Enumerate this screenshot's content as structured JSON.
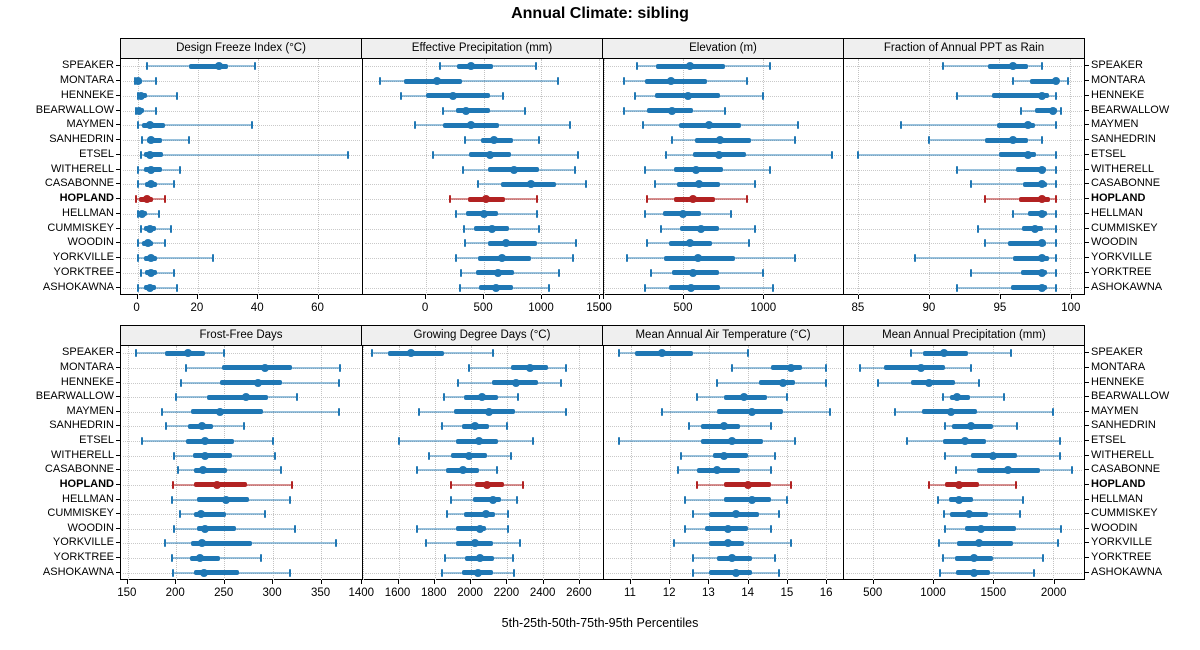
{
  "title": "Annual Climate: sibling",
  "caption": "5th-25th-50th-75th-95th Percentiles",
  "highlight_station": "HOPLAND",
  "percentile_labels": [
    "5th",
    "25th",
    "50th",
    "75th",
    "95th"
  ],
  "stations": [
    "SPEAKER",
    "MONTARA",
    "HENNEKE",
    "BEARWALLOW",
    "MAYMEN",
    "SANHEDRIN",
    "ETSEL",
    "WITHERELL",
    "CASABONNE",
    "HOPLAND",
    "HELLMAN",
    "CUMMISKEY",
    "WOODIN",
    "YORKVILLE",
    "YORKTREE",
    "ASHOKAWNA"
  ],
  "colors": {
    "normal": "#1f77b4",
    "normal_whisker": "rgba(31,119,180,0.45)",
    "highlight": "#b22222",
    "highlight_whisker": "rgba(178,34,34,0.5)",
    "strip_bg": "#efefef",
    "grid": "#c3c3c3",
    "border": "#000000"
  },
  "chart_data": [
    {
      "type": "scatter",
      "subtype": "percentile-interval-dotplot",
      "title": "Design Freeze Index (°C)",
      "row": 0,
      "xlim": [
        -5.5,
        74.5
      ],
      "ticks": [
        0,
        20,
        40,
        60
      ],
      "values": [
        [
          3,
          17,
          27,
          30,
          39
        ],
        [
          -1,
          -0.5,
          0,
          1.5,
          6
        ],
        [
          0,
          0.5,
          1,
          3,
          13
        ],
        [
          -0.5,
          0,
          0.5,
          2,
          6
        ],
        [
          0,
          1.5,
          4,
          9,
          38
        ],
        [
          1.5,
          3,
          4.5,
          8,
          17
        ],
        [
          1,
          2,
          4,
          8.5,
          70
        ],
        [
          0,
          2,
          4.5,
          8,
          14
        ],
        [
          0,
          2.5,
          4.5,
          6.5,
          12
        ],
        [
          -0.5,
          0.5,
          3,
          5,
          9
        ],
        [
          0,
          0.5,
          1.5,
          3,
          7
        ],
        [
          1,
          2,
          4,
          6,
          11
        ],
        [
          0,
          1.5,
          3.5,
          5,
          9
        ],
        [
          0,
          2,
          4.5,
          6.5,
          25
        ],
        [
          1,
          2.5,
          4.5,
          6.5,
          12
        ],
        [
          0,
          2,
          4,
          6,
          13
        ]
      ]
    },
    {
      "type": "scatter",
      "subtype": "percentile-interval-dotplot",
      "title": "Effective Precipitation (mm)",
      "row": 0,
      "xlim": [
        -550,
        1530
      ],
      "ticks": [
        0,
        500,
        1000,
        1500
      ],
      "values": [
        [
          120,
          265,
          390,
          580,
          955
        ],
        [
          -400,
          -190,
          95,
          315,
          1145
        ],
        [
          -220,
          0,
          230,
          550,
          670
        ],
        [
          145,
          260,
          350,
          550,
          860
        ],
        [
          -100,
          145,
          390,
          630,
          1245
        ],
        [
          340,
          480,
          590,
          750,
          980
        ],
        [
          60,
          375,
          550,
          740,
          1320
        ],
        [
          320,
          540,
          760,
          980,
          1295
        ],
        [
          450,
          650,
          910,
          1130,
          1390
        ],
        [
          210,
          360,
          520,
          680,
          960
        ],
        [
          255,
          350,
          500,
          625,
          960
        ],
        [
          330,
          415,
          575,
          715,
          980
        ],
        [
          340,
          535,
          690,
          960,
          1300
        ],
        [
          260,
          450,
          655,
          910,
          1270
        ],
        [
          300,
          435,
          620,
          760,
          1155
        ],
        [
          290,
          460,
          610,
          750,
          1070
        ]
      ]
    },
    {
      "type": "scatter",
      "subtype": "percentile-interval-dotplot",
      "title": "Elevation (m)",
      "row": 0,
      "xlim": [
        0,
        1500
      ],
      "ticks": [
        0,
        500,
        1000
      ],
      "values": [
        [
          210,
          330,
          540,
          760,
          1040
        ],
        [
          130,
          260,
          420,
          650,
          900
        ],
        [
          200,
          320,
          530,
          730,
          1000
        ],
        [
          130,
          270,
          430,
          560,
          760
        ],
        [
          250,
          470,
          660,
          860,
          1220
        ],
        [
          430,
          570,
          730,
          920,
          1200
        ],
        [
          390,
          560,
          720,
          890,
          1430
        ],
        [
          260,
          440,
          580,
          750,
          1040
        ],
        [
          320,
          460,
          600,
          730,
          950
        ],
        [
          270,
          440,
          560,
          700,
          900
        ],
        [
          260,
          370,
          500,
          610,
          800
        ],
        [
          360,
          480,
          610,
          720,
          950
        ],
        [
          270,
          410,
          540,
          680,
          910
        ],
        [
          150,
          380,
          590,
          820,
          1200
        ],
        [
          300,
          430,
          560,
          720,
          1000
        ],
        [
          260,
          410,
          550,
          730,
          1060
        ]
      ]
    },
    {
      "type": "scatter",
      "subtype": "percentile-interval-dotplot",
      "title": "Fraction of Annual PPT as Rain",
      "row": 0,
      "xlim": [
        84,
        101
      ],
      "ticks": [
        85,
        90,
        95,
        100
      ],
      "values": [
        [
          91,
          94.2,
          96,
          97,
          98
        ],
        [
          96,
          97.2,
          99,
          99.2,
          99.9
        ],
        [
          92,
          94.5,
          98,
          98.5,
          99
        ],
        [
          96.5,
          97.5,
          98.8,
          99.1,
          99.4
        ],
        [
          88,
          94.8,
          97,
          97.5,
          99
        ],
        [
          90,
          94,
          96,
          97,
          98
        ],
        [
          85,
          95,
          97,
          97.6,
          99
        ],
        [
          92,
          96.2,
          98,
          98.3,
          99
        ],
        [
          93,
          96.7,
          98,
          98.4,
          99
        ],
        [
          94,
          96.4,
          98,
          98.6,
          99
        ],
        [
          96,
          97,
          98,
          98.4,
          99
        ],
        [
          93.5,
          96.6,
          97.5,
          98.1,
          99
        ],
        [
          94,
          95.6,
          98,
          98.3,
          99
        ],
        [
          89,
          96,
          98,
          98.5,
          99
        ],
        [
          93,
          96.5,
          98,
          98.4,
          99
        ],
        [
          92,
          95.8,
          98,
          98.4,
          99
        ]
      ]
    },
    {
      "type": "scatter",
      "subtype": "percentile-interval-dotplot",
      "title": "Frost-Free Days",
      "row": 1,
      "xlim": [
        143,
        392
      ],
      "ticks": [
        150,
        200,
        250,
        300,
        350
      ],
      "values": [
        [
          158,
          188,
          212,
          230,
          250
        ],
        [
          210,
          247,
          292,
          320,
          370
        ],
        [
          205,
          245,
          285,
          310,
          368
        ],
        [
          200,
          232,
          272,
          295,
          325
        ],
        [
          185,
          215,
          245,
          290,
          368
        ],
        [
          190,
          212,
          227,
          238,
          270
        ],
        [
          165,
          210,
          230,
          260,
          300
        ],
        [
          198,
          217,
          230,
          258,
          302
        ],
        [
          202,
          218,
          228,
          253,
          308
        ],
        [
          197,
          218,
          242,
          273,
          320
        ],
        [
          196,
          222,
          252,
          275,
          318
        ],
        [
          204,
          218,
          226,
          252,
          292
        ],
        [
          198,
          222,
          230,
          262,
          323
        ],
        [
          188,
          215,
          227,
          278,
          365
        ],
        [
          196,
          214,
          225,
          245,
          288
        ],
        [
          197,
          218,
          229,
          265,
          318
        ]
      ]
    },
    {
      "type": "scatter",
      "subtype": "percentile-interval-dotplot",
      "title": "Growing Degree Days (°C)",
      "row": 1,
      "xlim": [
        1400,
        2730
      ],
      "ticks": [
        1400,
        1600,
        1800,
        2000,
        2200,
        2400,
        2600
      ],
      "values": [
        [
          1450,
          1540,
          1670,
          1850,
          2120
        ],
        [
          1990,
          2220,
          2330,
          2430,
          2530
        ],
        [
          1930,
          2115,
          2250,
          2370,
          2500
        ],
        [
          1850,
          1960,
          2060,
          2150,
          2260
        ],
        [
          1710,
          1905,
          2100,
          2245,
          2530
        ],
        [
          1840,
          1950,
          2025,
          2100,
          2200
        ],
        [
          1600,
          1915,
          2045,
          2150,
          2345
        ],
        [
          1770,
          1890,
          1990,
          2090,
          2225
        ],
        [
          1700,
          1860,
          1955,
          2045,
          2145
        ],
        [
          1890,
          2025,
          2090,
          2185,
          2290
        ],
        [
          1890,
          2010,
          2125,
          2165,
          2255
        ],
        [
          1870,
          1960,
          2085,
          2135,
          2205
        ],
        [
          1700,
          1915,
          2050,
          2085,
          2205
        ],
        [
          1750,
          1920,
          2020,
          2125,
          2270
        ],
        [
          1855,
          1965,
          2050,
          2130,
          2235
        ],
        [
          1840,
          1950,
          2040,
          2125,
          2240
        ]
      ]
    },
    {
      "type": "scatter",
      "subtype": "percentile-interval-dotplot",
      "title": "Mean Annual Air Temperature (°C)",
      "row": 1,
      "xlim": [
        10.3,
        16.45
      ],
      "ticks": [
        11,
        12,
        13,
        14,
        15,
        16
      ],
      "values": [
        [
          10.7,
          11.1,
          11.8,
          12.6,
          14.0
        ],
        [
          13.6,
          14.6,
          15.1,
          15.4,
          16.0
        ],
        [
          13.2,
          14.3,
          14.9,
          15.2,
          16.0
        ],
        [
          12.7,
          13.4,
          13.9,
          14.5,
          15.0
        ],
        [
          11.8,
          13.2,
          14.1,
          14.9,
          16.1
        ],
        [
          12.5,
          12.8,
          13.4,
          13.8,
          14.6
        ],
        [
          10.7,
          12.8,
          13.6,
          14.4,
          15.2
        ],
        [
          12.3,
          13.1,
          13.4,
          14.0,
          14.7
        ],
        [
          12.2,
          12.7,
          13.2,
          13.8,
          14.6
        ],
        [
          12.7,
          13.4,
          14.0,
          14.6,
          15.1
        ],
        [
          12.4,
          13.4,
          14.1,
          14.6,
          15.0
        ],
        [
          12.6,
          13.0,
          13.7,
          14.3,
          14.8
        ],
        [
          12.4,
          12.9,
          13.5,
          14.0,
          14.6
        ],
        [
          12.1,
          13.0,
          13.5,
          13.9,
          15.1
        ],
        [
          12.6,
          13.2,
          13.6,
          14.1,
          14.7
        ],
        [
          12.6,
          13.0,
          13.7,
          14.1,
          14.8
        ]
      ]
    },
    {
      "type": "scatter",
      "subtype": "percentile-interval-dotplot",
      "title": "Mean Annual Precipitation (mm)",
      "row": 1,
      "xlim": [
        260,
        2260
      ],
      "ticks": [
        500,
        1000,
        1500,
        2000
      ],
      "values": [
        [
          820,
          920,
          1090,
          1290,
          1650
        ],
        [
          390,
          590,
          900,
          1100,
          1320
        ],
        [
          540,
          820,
          970,
          1180,
          1380
        ],
        [
          1080,
          1140,
          1200,
          1310,
          1590
        ],
        [
          680,
          910,
          1150,
          1370,
          2000
        ],
        [
          1100,
          1160,
          1320,
          1500,
          1700
        ],
        [
          780,
          1080,
          1270,
          1440,
          2060
        ],
        [
          1100,
          1320,
          1500,
          1700,
          2060
        ],
        [
          1190,
          1370,
          1630,
          1890,
          2160
        ],
        [
          970,
          1100,
          1220,
          1380,
          1690
        ],
        [
          1040,
          1130,
          1220,
          1330,
          1750
        ],
        [
          1090,
          1140,
          1300,
          1460,
          1730
        ],
        [
          1100,
          1270,
          1400,
          1690,
          2070
        ],
        [
          1050,
          1200,
          1380,
          1670,
          2040
        ],
        [
          1080,
          1180,
          1340,
          1500,
          1920
        ],
        [
          1060,
          1190,
          1340,
          1480,
          1840
        ]
      ]
    }
  ]
}
